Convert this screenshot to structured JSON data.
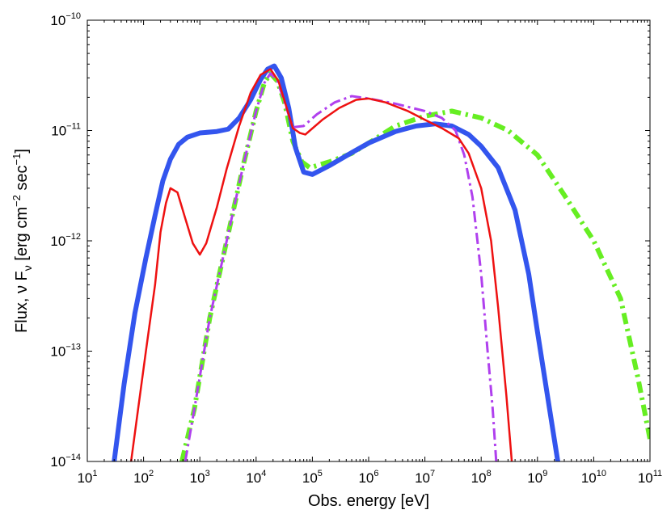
{
  "chart_data": {
    "type": "line",
    "title": "",
    "xlabel": "Obs. energy [eV]",
    "ylabel": {
      "prefix": "Flux, ",
      "nu": "ν",
      "F": " F",
      "sub": "ν",
      "bracket_open": " [erg cm",
      "exp1": "−2",
      "mid": " sec",
      "exp2": "−1",
      "bracket_close": "]"
    },
    "x_scale": "log",
    "y_scale": "log",
    "xlim": [
      10,
      100000000000
    ],
    "ylim": [
      1e-14,
      1e-10
    ],
    "grid": false,
    "x_ticks": [
      {
        "base": "10",
        "exp": "1",
        "value": 10.0
      },
      {
        "base": "10",
        "exp": "2",
        "value": 100.0
      },
      {
        "base": "10",
        "exp": "3",
        "value": 1000.0
      },
      {
        "base": "10",
        "exp": "4",
        "value": 10000.0
      },
      {
        "base": "10",
        "exp": "5",
        "value": 100000.0
      },
      {
        "base": "10",
        "exp": "6",
        "value": 1000000.0
      },
      {
        "base": "10",
        "exp": "7",
        "value": 10000000.0
      },
      {
        "base": "10",
        "exp": "8",
        "value": 100000000.0
      },
      {
        "base": "10",
        "exp": "9",
        "value": 1000000000.0
      },
      {
        "base": "10",
        "exp": "10",
        "value": 10000000000.0
      },
      {
        "base": "10",
        "exp": "11",
        "value": 100000000000.0
      }
    ],
    "y_ticks": [
      {
        "base": "10",
        "exp": "−14",
        "value": 1e-14
      },
      {
        "base": "10",
        "exp": "−13",
        "value": 1e-13
      },
      {
        "base": "10",
        "exp": "−12",
        "value": 1e-12
      },
      {
        "base": "10",
        "exp": "−11",
        "value": 1e-11
      },
      {
        "base": "10",
        "exp": "−10",
        "value": 1e-10
      }
    ],
    "series": [
      {
        "name": "blue-thick",
        "color": "#3355ee",
        "style": "solid-thick",
        "points": [
          [
            30,
            1e-14
          ],
          [
            45,
            5e-14
          ],
          [
            70,
            2.2e-13
          ],
          [
            110,
            7e-13
          ],
          [
            160,
            1.7e-12
          ],
          [
            220,
            3.5e-12
          ],
          [
            300,
            5.5e-12
          ],
          [
            420,
            7.5e-12
          ],
          [
            600,
            8.7e-12
          ],
          [
            1000,
            9.5e-12
          ],
          [
            2000,
            9.8e-12
          ],
          [
            3200,
            1.03e-11
          ],
          [
            5000,
            1.3e-11
          ],
          [
            8000,
            1.9e-11
          ],
          [
            12000,
            2.9e-11
          ],
          [
            16000,
            3.6e-11
          ],
          [
            21000,
            3.85e-11
          ],
          [
            28000,
            3e-11
          ],
          [
            38000,
            1.6e-11
          ],
          [
            50000,
            7e-12
          ],
          [
            70000,
            4.2e-12
          ],
          [
            100000,
            4e-12
          ],
          [
            200000,
            4.8e-12
          ],
          [
            500000,
            6.3e-12
          ],
          [
            1000000,
            7.7e-12
          ],
          [
            3000000,
            9.8e-12
          ],
          [
            7000000,
            1.1e-11
          ],
          [
            15000000,
            1.15e-11
          ],
          [
            30000000,
            1.1e-11
          ],
          [
            60000000,
            9.2e-12
          ],
          [
            100000000,
            7.2e-12
          ],
          [
            200000000,
            4.6e-12
          ],
          [
            400000000,
            1.9e-12
          ],
          [
            700000000,
            5e-13
          ],
          [
            1000000000,
            1.5e-13
          ],
          [
            1500000000,
            4e-14
          ],
          [
            2300000000,
            1e-14
          ]
        ]
      },
      {
        "name": "red",
        "color": "#ee1111",
        "style": "solid",
        "points": [
          [
            60,
            1e-14
          ],
          [
            80,
            3e-14
          ],
          [
            110,
            1e-13
          ],
          [
            160,
            4e-13
          ],
          [
            200,
            1.2e-12
          ],
          [
            250,
            2.2e-12
          ],
          [
            300,
            3e-12
          ],
          [
            400,
            2.75e-12
          ],
          [
            550,
            1.6e-12
          ],
          [
            750,
            9.5e-13
          ],
          [
            1000,
            7.5e-13
          ],
          [
            1300,
            9.5e-13
          ],
          [
            2000,
            2e-12
          ],
          [
            3000,
            4.5e-12
          ],
          [
            5000,
            1.1e-11
          ],
          [
            8000,
            2.2e-11
          ],
          [
            12000,
            3.2e-11
          ],
          [
            18000,
            3.6e-11
          ],
          [
            25000,
            2.8e-11
          ],
          [
            35000,
            1.6e-11
          ],
          [
            45000,
            1.05e-11
          ],
          [
            60000,
            9.5e-12
          ],
          [
            75000,
            9.2e-12
          ],
          [
            150000,
            1.25e-11
          ],
          [
            300000,
            1.6e-11
          ],
          [
            600000,
            1.9e-11
          ],
          [
            1000000,
            1.95e-11
          ],
          [
            2000000,
            1.8e-11
          ],
          [
            5000000,
            1.5e-11
          ],
          [
            10000000,
            1.25e-11
          ],
          [
            20000000,
            1.05e-11
          ],
          [
            40000000,
            8.5e-12
          ],
          [
            60000000,
            6.2e-12
          ],
          [
            100000000,
            3e-12
          ],
          [
            150000000,
            1e-12
          ],
          [
            200000000,
            2.5e-13
          ],
          [
            280000000,
            4e-14
          ],
          [
            350000000,
            1e-14
          ]
        ]
      },
      {
        "name": "purple-dashdot",
        "color": "#b040ee",
        "style": "dashdot",
        "points": [
          [
            550,
            1e-14
          ],
          [
            800,
            3e-14
          ],
          [
            1500,
            2e-13
          ],
          [
            3000,
            1e-12
          ],
          [
            6000,
            5e-12
          ],
          [
            10000,
            1.5e-11
          ],
          [
            14000,
            2.7e-11
          ],
          [
            18000,
            3.3e-11
          ],
          [
            24000,
            2.8e-11
          ],
          [
            32000,
            1.8e-11
          ],
          [
            45000,
            1.07e-11
          ],
          [
            70000,
            1.1e-11
          ],
          [
            120000,
            1.4e-11
          ],
          [
            250000,
            1.8e-11
          ],
          [
            500000,
            2.05e-11
          ],
          [
            1000000,
            1.95e-11
          ],
          [
            3000000,
            1.75e-11
          ],
          [
            10000000,
            1.5e-11
          ],
          [
            20000000,
            1.3e-11
          ],
          [
            35000000,
            1e-11
          ],
          [
            50000000,
            6e-12
          ],
          [
            70000000,
            2.5e-12
          ],
          [
            100000000,
            5e-13
          ],
          [
            130000000,
            1e-13
          ],
          [
            160000000,
            3e-14
          ],
          [
            185000000,
            1e-14
          ]
        ]
      },
      {
        "name": "green-dashdot-thick",
        "color": "#66ee22",
        "style": "dashdot-thick",
        "points": [
          [
            480,
            1e-14
          ],
          [
            800,
            3e-14
          ],
          [
            1500,
            2e-13
          ],
          [
            3000,
            1e-12
          ],
          [
            6000,
            5e-12
          ],
          [
            10000,
            1.5e-11
          ],
          [
            14000,
            2.7e-11
          ],
          [
            18000,
            3.3e-11
          ],
          [
            24000,
            2.8e-11
          ],
          [
            32000,
            1.8e-11
          ],
          [
            45000,
            8e-12
          ],
          [
            65000,
            5.2e-12
          ],
          [
            90000,
            4.6e-12
          ],
          [
            200000,
            5.2e-12
          ],
          [
            500000,
            6.2e-12
          ],
          [
            1000000,
            7.7e-12
          ],
          [
            3000000,
            1.1e-11
          ],
          [
            10000000,
            1.35e-11
          ],
          [
            30000000,
            1.5e-11
          ],
          [
            100000000,
            1.3e-11
          ],
          [
            300000000,
            1e-11
          ],
          [
            1000000000,
            6e-12
          ],
          [
            3000000000,
            2.6e-12
          ],
          [
            10000000000,
            1e-12
          ],
          [
            30000000000,
            3e-13
          ],
          [
            60000000000,
            6e-14
          ],
          [
            100000000000,
            1.6e-14
          ]
        ]
      }
    ]
  }
}
